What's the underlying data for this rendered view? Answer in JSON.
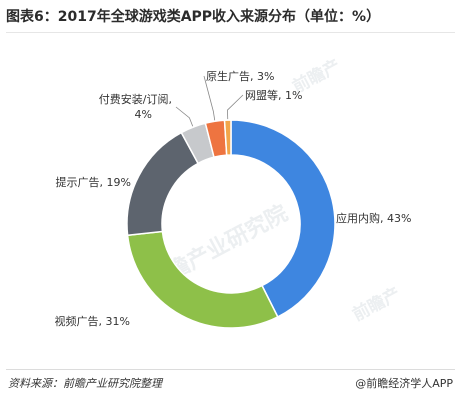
{
  "title": "图表6：2017年全球游戏类APP收入来源分布（单位：%）",
  "source": "资料来源：前瞻产业研究院整理",
  "credit": "@前瞻经济学人APP",
  "watermark": "前瞻产业研究院",
  "chart_data": {
    "type": "pie",
    "donut": true,
    "legend": "none",
    "slices": [
      {
        "label": "应用内购",
        "value": 43,
        "color": "#3e86e0",
        "label_text": "应用内购, 43%"
      },
      {
        "label": "视频广告",
        "value": 31,
        "color": "#8ec049",
        "label_text": "视频广告, 31%"
      },
      {
        "label": "提示广告",
        "value": 19,
        "color": "#5d646e",
        "label_text": "提示广告, 19%"
      },
      {
        "label": "付费安装/订阅",
        "value": 4,
        "color": "#c7c9cc",
        "label_text": "付费安装/订阅, 4%"
      },
      {
        "label": "原生广告",
        "value": 3,
        "color": "#ee7440",
        "label_text": "原生广告, 3%"
      },
      {
        "label": "网盟等",
        "value": 1,
        "color": "#f2a64a",
        "label_text": "网盟等, 1%"
      }
    ]
  }
}
